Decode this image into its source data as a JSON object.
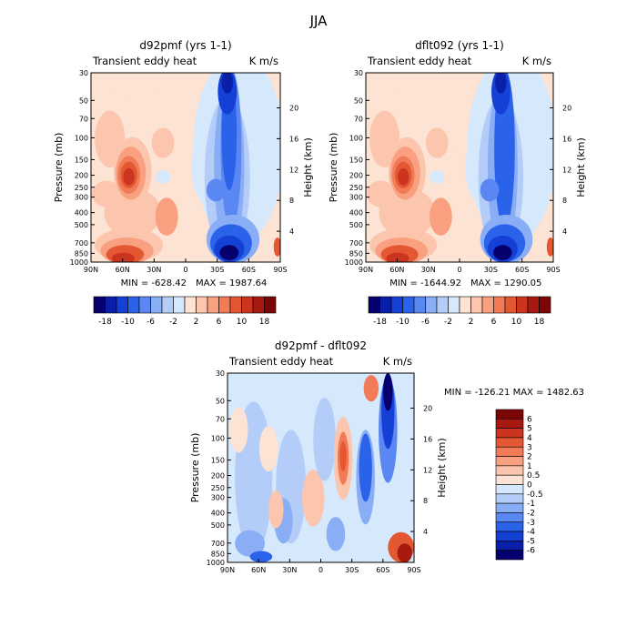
{
  "figure_title": "JJA",
  "chart_data": [
    {
      "type": "heatmap",
      "title": "d92pmf (yrs 1-1)",
      "left_label": "Transient eddy heat",
      "right_label": "K m/s",
      "ylabel": "Pressure (mb)",
      "ylabel_right": "Height (km)",
      "x_ticks": [
        "90N",
        "60N",
        "30N",
        "0",
        "30S",
        "60S",
        "90S"
      ],
      "x_range": [
        90,
        -90
      ],
      "y_ticks": [
        "30",
        "50",
        "70",
        "100",
        "150",
        "200",
        "250",
        "300",
        "400",
        "500",
        "700",
        "850",
        "1000"
      ],
      "y_range_mb": [
        1000,
        30
      ],
      "height_ticks": [
        "4",
        "8",
        "12",
        "16",
        "20"
      ],
      "min_label": "MIN = -628.42",
      "max_label": "MAX = 1987.64",
      "colorbar_labels": [
        "-18",
        "-10",
        "-6",
        "-2",
        "2",
        "6",
        "10",
        "18"
      ]
    },
    {
      "type": "heatmap",
      "title": "dflt092 (yrs 1-1)",
      "left_label": "Transient eddy heat",
      "right_label": "K m/s",
      "ylabel": "Pressure (mb)",
      "ylabel_right": "Height (km)",
      "x_ticks": [
        "90N",
        "60N",
        "30N",
        "0",
        "30S",
        "60S",
        "90S"
      ],
      "x_range": [
        90,
        -90
      ],
      "y_ticks": [
        "30",
        "50",
        "70",
        "100",
        "150",
        "200",
        "250",
        "300",
        "400",
        "500",
        "700",
        "850",
        "1000"
      ],
      "y_range_mb": [
        1000,
        30
      ],
      "height_ticks": [
        "4",
        "8",
        "12",
        "16",
        "20"
      ],
      "min_label": "MIN = -1644.92",
      "max_label": "MAX = 1290.05",
      "colorbar_labels": [
        "-18",
        "-10",
        "-6",
        "-2",
        "2",
        "6",
        "10",
        "18"
      ]
    },
    {
      "type": "heatmap",
      "title": "d92pmf - dflt092",
      "left_label": "Transient eddy heat",
      "right_label": "K m/s",
      "ylabel": "Pressure (mb)",
      "ylabel_right": "Height (km)",
      "x_ticks": [
        "90N",
        "60N",
        "30N",
        "0",
        "30S",
        "60S",
        "90S"
      ],
      "x_range": [
        90,
        -90
      ],
      "y_ticks": [
        "30",
        "50",
        "70",
        "100",
        "150",
        "200",
        "250",
        "300",
        "400",
        "500",
        "700",
        "850",
        "1000"
      ],
      "y_range_mb": [
        1000,
        30
      ],
      "height_ticks": [
        "4",
        "8",
        "12",
        "16",
        "20"
      ],
      "minmax_label": "MIN = -126.21   MAX = 1482.63",
      "colorbar_labels": [
        "6",
        "5",
        "4",
        "3",
        "2",
        "1",
        "0.5",
        "0",
        "-0.5",
        "-1",
        "-2",
        "-3",
        "-4",
        "-5",
        "-6"
      ]
    }
  ],
  "colors": {
    "diverging_16": [
      "#05006e",
      "#0a1fa8",
      "#1540d6",
      "#2b62ea",
      "#5a87f2",
      "#8aaef6",
      "#b3cdf8",
      "#d6e8fb",
      "#fde3d4",
      "#fbc6ad",
      "#f8a07f",
      "#f27b57",
      "#e45733",
      "#cb3520",
      "#a81a10",
      "#7a0606"
    ],
    "frame": "#000000"
  }
}
